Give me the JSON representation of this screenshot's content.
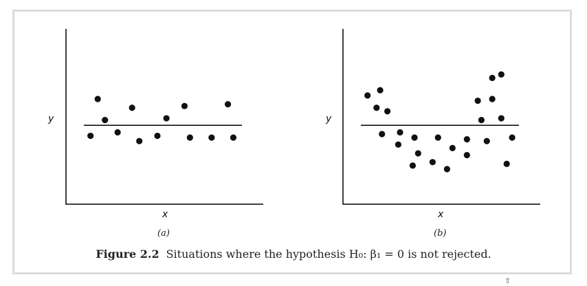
{
  "caption": {
    "figure_label": "Figure 2.2",
    "text": "Situations where the hypothesis H₀: β₁ = 0 is not rejected."
  },
  "chart_data": [
    {
      "type": "scatter",
      "panel_label": "(a)",
      "xlabel": "x",
      "ylabel": "y",
      "xlim": [
        0,
        10
      ],
      "ylim": [
        0,
        10
      ],
      "horizontal_line_y": 4.5,
      "grid": false,
      "points": [
        {
          "x": 0.9,
          "y": 3.9
        },
        {
          "x": 1.3,
          "y": 6.0
        },
        {
          "x": 1.7,
          "y": 4.8
        },
        {
          "x": 2.4,
          "y": 4.1
        },
        {
          "x": 3.2,
          "y": 5.5
        },
        {
          "x": 3.6,
          "y": 3.6
        },
        {
          "x": 4.6,
          "y": 3.9
        },
        {
          "x": 5.1,
          "y": 4.9
        },
        {
          "x": 6.1,
          "y": 5.6
        },
        {
          "x": 6.4,
          "y": 3.8
        },
        {
          "x": 7.6,
          "y": 3.8
        },
        {
          "x": 8.5,
          "y": 5.7
        },
        {
          "x": 8.8,
          "y": 3.8
        }
      ]
    },
    {
      "type": "scatter",
      "panel_label": "(b)",
      "xlabel": "x",
      "ylabel": "y",
      "xlim": [
        0,
        10
      ],
      "ylim": [
        0,
        10
      ],
      "horizontal_line_y": 4.5,
      "grid": false,
      "points": [
        {
          "x": 0.9,
          "y": 6.2
        },
        {
          "x": 1.4,
          "y": 5.5
        },
        {
          "x": 1.6,
          "y": 6.5
        },
        {
          "x": 1.7,
          "y": 4.0
        },
        {
          "x": 2.0,
          "y": 5.3
        },
        {
          "x": 2.6,
          "y": 3.4
        },
        {
          "x": 2.7,
          "y": 4.1
        },
        {
          "x": 3.4,
          "y": 2.2
        },
        {
          "x": 3.5,
          "y": 3.8
        },
        {
          "x": 3.7,
          "y": 2.9
        },
        {
          "x": 4.5,
          "y": 2.4
        },
        {
          "x": 4.8,
          "y": 3.8
        },
        {
          "x": 5.3,
          "y": 2.0
        },
        {
          "x": 5.6,
          "y": 3.2
        },
        {
          "x": 6.4,
          "y": 2.8
        },
        {
          "x": 6.4,
          "y": 3.7
        },
        {
          "x": 7.0,
          "y": 5.9
        },
        {
          "x": 7.2,
          "y": 4.8
        },
        {
          "x": 7.5,
          "y": 3.6
        },
        {
          "x": 7.8,
          "y": 6.0
        },
        {
          "x": 7.8,
          "y": 7.2
        },
        {
          "x": 8.3,
          "y": 7.4
        },
        {
          "x": 8.3,
          "y": 4.9
        },
        {
          "x": 8.6,
          "y": 2.3
        },
        {
          "x": 8.9,
          "y": 3.8
        }
      ]
    }
  ]
}
